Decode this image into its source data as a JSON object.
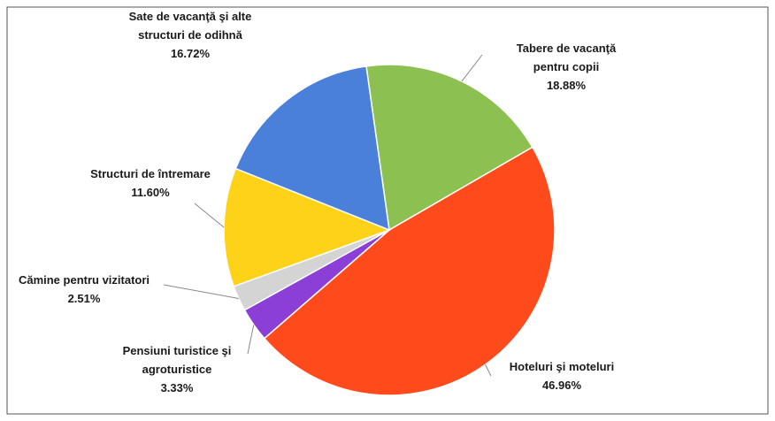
{
  "chart_data": {
    "type": "pie",
    "categories": [
      "Tabere de vacanţă pentru copii",
      "Hoteluri şi moteluri",
      "Pensiuni turistice şi agroturistice",
      "Cămine pentru vizitatori",
      "Structuri de întremare",
      "Sate de vacanţă  şi alte structuri de odihnă"
    ],
    "values": [
      18.88,
      46.96,
      3.33,
      2.51,
      11.6,
      16.72
    ],
    "value_labels": [
      "18.88%",
      "46.96%",
      "3.33%",
      "2.51%",
      "11.60%",
      "16.72%"
    ],
    "colors": [
      "#8cc152",
      "#ff4b1c",
      "#8b3fd6",
      "#d4d4d4",
      "#ffd21a",
      "#4a80d9"
    ]
  }
}
